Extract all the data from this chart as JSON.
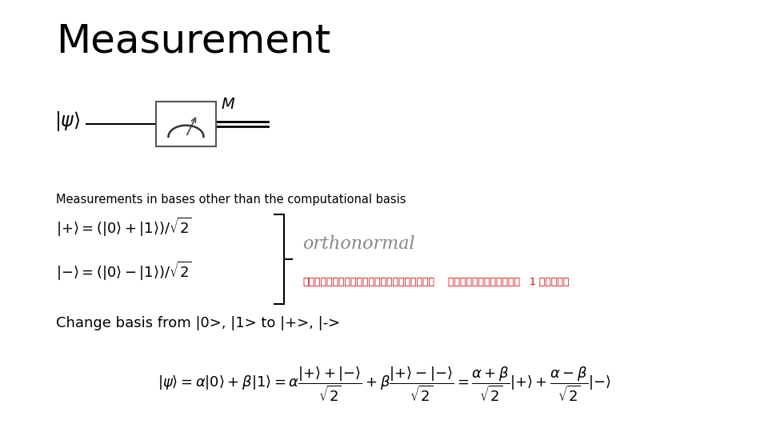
{
  "title": "Measurement",
  "title_fontsize": 36,
  "title_fontweight": "normal",
  "background_color": "#ffffff",
  "text_color": "#000000",
  "red_color": "#cc0000",
  "subtitle": "Measurements in bases other than the computational basis",
  "subtitle_fontsize": 10.5,
  "orthonormal_text": "orthonormal",
  "thai_text1": "เวคเตอร์ทุกคตั้งฉากกัน",
  "thai_text2": "และมีความยาว   1 หน่วย",
  "change_basis_text": "Change basis from |0>, |1> to |+>, |->",
  "change_basis_fontsize": 13
}
